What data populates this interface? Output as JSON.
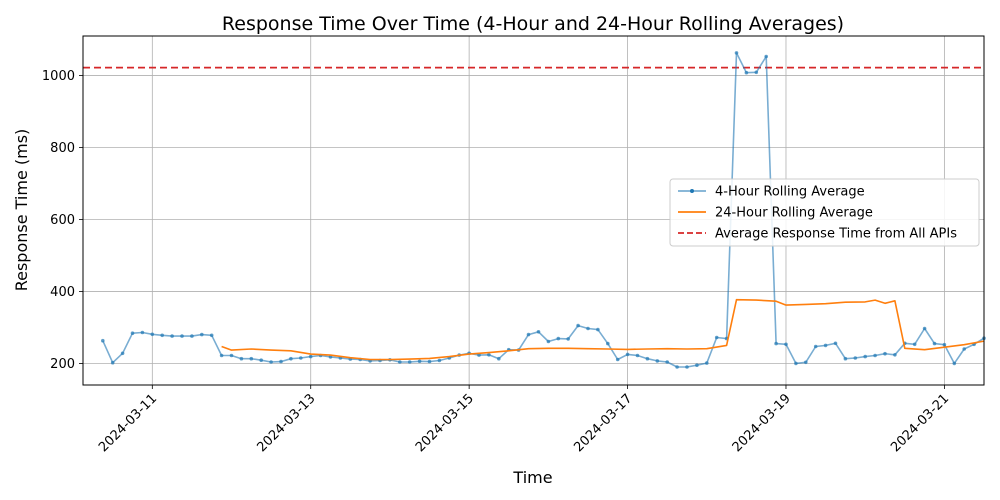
{
  "chart_data": {
    "type": "line",
    "title": "Response Time Over Time (4-Hour and 24-Hour Rolling Averages)",
    "xlabel": "Time",
    "ylabel": "Response Time (ms)",
    "x_axis_type": "date",
    "xlim": [
      "2024-03-10T03:00",
      "2024-03-21T12:00"
    ],
    "ylim": [
      140,
      1110
    ],
    "x_ticks": [
      "2024-03-11",
      "2024-03-13",
      "2024-03-15",
      "2024-03-17",
      "2024-03-19",
      "2024-03-21"
    ],
    "y_ticks": [
      200,
      400,
      600,
      800,
      1000
    ],
    "grid": true,
    "legend_position": "center-right",
    "reference_line": {
      "name": "Average Response Time from All APIs",
      "value": 1022,
      "color": "#d62728",
      "style": "dashed"
    },
    "series": [
      {
        "name": "4-Hour Rolling Average",
        "color": "#1f77b4",
        "style": "line-with-markers",
        "points": [
          [
            "2024-03-10T09:00",
            263
          ],
          [
            "2024-03-10T12:00",
            202
          ],
          [
            "2024-03-10T15:00",
            228
          ],
          [
            "2024-03-10T18:00",
            284
          ],
          [
            "2024-03-10T21:00",
            286
          ],
          [
            "2024-03-11T00:00",
            281
          ],
          [
            "2024-03-11T03:00",
            278
          ],
          [
            "2024-03-11T06:00",
            276
          ],
          [
            "2024-03-11T09:00",
            276
          ],
          [
            "2024-03-11T12:00",
            276
          ],
          [
            "2024-03-11T15:00",
            280
          ],
          [
            "2024-03-11T18:00",
            278
          ],
          [
            "2024-03-11T21:00",
            222
          ],
          [
            "2024-03-12T00:00",
            222
          ],
          [
            "2024-03-12T03:00",
            213
          ],
          [
            "2024-03-12T06:00",
            213
          ],
          [
            "2024-03-12T09:00",
            209
          ],
          [
            "2024-03-12T12:00",
            204
          ],
          [
            "2024-03-12T15:00",
            205
          ],
          [
            "2024-03-12T18:00",
            213
          ],
          [
            "2024-03-12T21:00",
            215
          ],
          [
            "2024-03-13T00:00",
            219
          ],
          [
            "2024-03-13T03:00",
            222
          ],
          [
            "2024-03-13T06:00",
            218
          ],
          [
            "2024-03-13T09:00",
            215
          ],
          [
            "2024-03-13T12:00",
            212
          ],
          [
            "2024-03-13T15:00",
            211
          ],
          [
            "2024-03-13T18:00",
            207
          ],
          [
            "2024-03-13T21:00",
            208
          ],
          [
            "2024-03-14T00:00",
            210
          ],
          [
            "2024-03-14T03:00",
            204
          ],
          [
            "2024-03-14T06:00",
            204
          ],
          [
            "2024-03-14T09:00",
            206
          ],
          [
            "2024-03-14T12:00",
            205
          ],
          [
            "2024-03-14T15:00",
            208
          ],
          [
            "2024-03-14T18:00",
            215
          ],
          [
            "2024-03-14T21:00",
            223
          ],
          [
            "2024-03-15T00:00",
            228
          ],
          [
            "2024-03-15T03:00",
            223
          ],
          [
            "2024-03-15T06:00",
            224
          ],
          [
            "2024-03-15T09:00",
            213
          ],
          [
            "2024-03-15T12:00",
            238
          ],
          [
            "2024-03-15T15:00",
            237
          ],
          [
            "2024-03-15T18:00",
            280
          ],
          [
            "2024-03-15T21:00",
            288
          ],
          [
            "2024-03-16T00:00",
            261
          ],
          [
            "2024-03-16T03:00",
            269
          ],
          [
            "2024-03-16T06:00",
            268
          ],
          [
            "2024-03-16T09:00",
            305
          ],
          [
            "2024-03-16T12:00",
            297
          ],
          [
            "2024-03-16T15:00",
            294
          ],
          [
            "2024-03-16T18:00",
            255
          ],
          [
            "2024-03-16T21:00",
            211
          ],
          [
            "2024-03-17T00:00",
            225
          ],
          [
            "2024-03-17T03:00",
            222
          ],
          [
            "2024-03-17T06:00",
            213
          ],
          [
            "2024-03-17T09:00",
            207
          ],
          [
            "2024-03-17T12:00",
            204
          ],
          [
            "2024-03-17T15:00",
            190
          ],
          [
            "2024-03-17T18:00",
            190
          ],
          [
            "2024-03-17T21:00",
            195
          ],
          [
            "2024-03-18T00:00",
            201
          ],
          [
            "2024-03-18T03:00",
            272
          ],
          [
            "2024-03-18T06:00",
            269
          ],
          [
            "2024-03-18T09:00",
            1063
          ],
          [
            "2024-03-18T12:00",
            1008
          ],
          [
            "2024-03-18T15:00",
            1009
          ],
          [
            "2024-03-18T18:00",
            1053
          ],
          [
            "2024-03-18T21:00",
            255
          ],
          [
            "2024-03-19T00:00",
            253
          ],
          [
            "2024-03-19T03:00",
            200
          ],
          [
            "2024-03-19T06:00",
            203
          ],
          [
            "2024-03-19T09:00",
            247
          ],
          [
            "2024-03-19T12:00",
            250
          ],
          [
            "2024-03-19T15:00",
            256
          ],
          [
            "2024-03-19T18:00",
            213
          ],
          [
            "2024-03-19T21:00",
            215
          ],
          [
            "2024-03-20T00:00",
            219
          ],
          [
            "2024-03-20T03:00",
            222
          ],
          [
            "2024-03-20T06:00",
            227
          ],
          [
            "2024-03-20T09:00",
            224
          ],
          [
            "2024-03-20T12:00",
            256
          ],
          [
            "2024-03-20T15:00",
            253
          ],
          [
            "2024-03-20T18:00",
            297
          ],
          [
            "2024-03-20T21:00",
            255
          ],
          [
            "2024-03-21T00:00",
            252
          ],
          [
            "2024-03-21T03:00",
            200
          ],
          [
            "2024-03-21T06:00",
            240
          ],
          [
            "2024-03-21T09:00",
            253
          ],
          [
            "2024-03-21T12:00",
            270
          ]
        ]
      },
      {
        "name": "24-Hour Rolling Average",
        "color": "#ff7f0e",
        "style": "line",
        "points": [
          [
            "2024-03-11T21:00",
            247
          ],
          [
            "2024-03-12T00:00",
            237
          ],
          [
            "2024-03-12T06:00",
            240
          ],
          [
            "2024-03-12T12:00",
            237
          ],
          [
            "2024-03-12T18:00",
            235
          ],
          [
            "2024-03-13T00:00",
            226
          ],
          [
            "2024-03-13T06:00",
            223
          ],
          [
            "2024-03-13T12:00",
            216
          ],
          [
            "2024-03-13T18:00",
            211
          ],
          [
            "2024-03-14T00:00",
            211
          ],
          [
            "2024-03-14T06:00",
            212
          ],
          [
            "2024-03-14T12:00",
            214
          ],
          [
            "2024-03-14T18:00",
            219
          ],
          [
            "2024-03-15T00:00",
            226
          ],
          [
            "2024-03-15T06:00",
            230
          ],
          [
            "2024-03-15T12:00",
            235
          ],
          [
            "2024-03-15T18:00",
            241
          ],
          [
            "2024-03-16T00:00",
            242
          ],
          [
            "2024-03-16T06:00",
            242
          ],
          [
            "2024-03-16T12:00",
            241
          ],
          [
            "2024-03-16T18:00",
            240
          ],
          [
            "2024-03-17T00:00",
            239
          ],
          [
            "2024-03-17T06:00",
            240
          ],
          [
            "2024-03-17T12:00",
            241
          ],
          [
            "2024-03-17T18:00",
            240
          ],
          [
            "2024-03-18T00:00",
            241
          ],
          [
            "2024-03-18T06:00",
            250
          ],
          [
            "2024-03-18T09:00",
            377
          ],
          [
            "2024-03-18T15:00",
            376
          ],
          [
            "2024-03-18T21:00",
            373
          ],
          [
            "2024-03-19T00:00",
            362
          ],
          [
            "2024-03-19T06:00",
            364
          ],
          [
            "2024-03-19T12:00",
            366
          ],
          [
            "2024-03-19T18:00",
            370
          ],
          [
            "2024-03-20T00:00",
            371
          ],
          [
            "2024-03-20T03:00",
            376
          ],
          [
            "2024-03-20T06:00",
            367
          ],
          [
            "2024-03-20T09:00",
            374
          ],
          [
            "2024-03-20T12:00",
            242
          ],
          [
            "2024-03-20T18:00",
            238
          ],
          [
            "2024-03-21T00:00",
            245
          ],
          [
            "2024-03-21T06:00",
            252
          ],
          [
            "2024-03-21T12:00",
            262
          ]
        ]
      }
    ]
  }
}
